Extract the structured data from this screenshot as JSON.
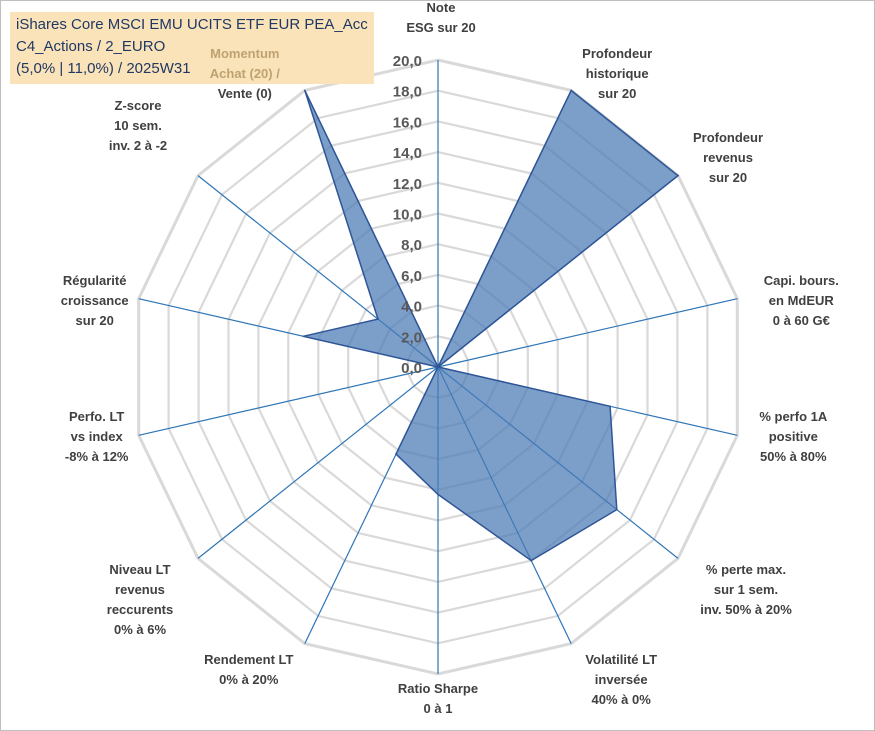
{
  "header": {
    "title_lines": [
      "iShares Core MSCI EMU UCITS ETF EUR PEA_Acc",
      "C4_Actions / 2_EURO",
      "(5,0% | 11,0%) / 2025W31"
    ]
  },
  "chart_data": {
    "type": "radar",
    "title": "iShares Core MSCI EMU UCITS ETF EUR PEA_Acc",
    "rlim": [
      0,
      20
    ],
    "tick_values": [
      0,
      2,
      4,
      6,
      8,
      10,
      12,
      14,
      16,
      18,
      20
    ],
    "tick_labels": [
      "0,0",
      "2,0",
      "4,0",
      "6,0",
      "8,0",
      "10,0",
      "12,0",
      "14,0",
      "16,0",
      "18,0",
      "20,0"
    ],
    "grid": true,
    "categories": [
      [
        "Note",
        "ESG sur 20"
      ],
      [
        "Profondeur",
        "historique",
        "sur 20"
      ],
      [
        "Profondeur",
        "revenus",
        "sur 20"
      ],
      [
        "Capi. bours.",
        "en MdEUR",
        "0 à 60 G€"
      ],
      [
        "% perfo 1A",
        "positive",
        "50% à 80%"
      ],
      [
        "% perte max.",
        "sur 1 sem.",
        "inv. 50% à 20%"
      ],
      [
        "Volatilité LT",
        "inversée",
        "40% à 0%"
      ],
      [
        "Ratio Sharpe",
        "0 à 1"
      ],
      [
        "Rendement LT",
        "0% à 20%"
      ],
      [
        "Niveau LT",
        "revenus",
        "reccurents",
        "0% à 6%"
      ],
      [
        "Perfo. LT",
        "vs index",
        "-8% à 12%"
      ],
      [
        "Régularité",
        "croissance",
        "sur 20"
      ],
      [
        "Z-score",
        "10 sem.",
        "inv. 2 à -2"
      ],
      [
        "Momentum",
        "Achat (20) /",
        "Vente (0)"
      ]
    ],
    "series": [
      {
        "values": [
          0,
          20,
          20,
          0,
          11.5,
          14.9,
          14.0,
          8.3,
          6.3,
          0,
          0,
          9.0,
          5.0,
          20
        ],
        "fill_color": "#4a7ab5",
        "line_color": "#2f5597"
      }
    ],
    "colors": {
      "grid": "#d9d9d9",
      "spoke": "#2e75b6",
      "tick_text": "#595959"
    }
  }
}
